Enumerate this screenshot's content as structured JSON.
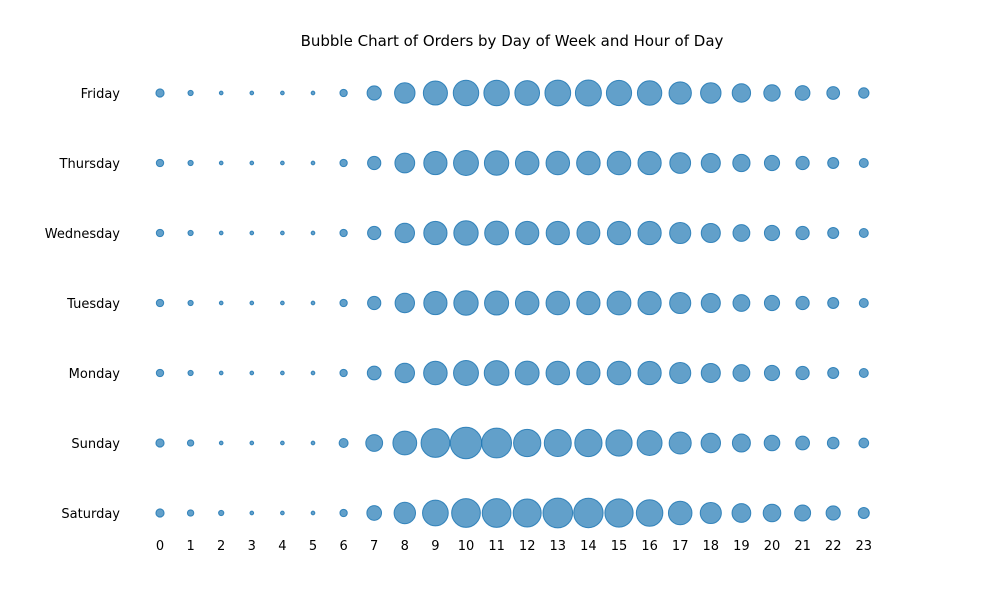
{
  "chart_data": {
    "type": "scatter",
    "title": "Bubble Chart of Orders by Day of Week and Hour of Day",
    "xlabel": "",
    "ylabel": "",
    "x": [
      0,
      1,
      2,
      3,
      4,
      5,
      6,
      7,
      8,
      9,
      10,
      11,
      12,
      13,
      14,
      15,
      16,
      17,
      18,
      19,
      20,
      21,
      22,
      23
    ],
    "days": [
      "Saturday",
      "Sunday",
      "Monday",
      "Tuesday",
      "Wednesday",
      "Thursday",
      "Friday"
    ],
    "grid": false,
    "legend": "none",
    "color": "#1f77b4",
    "values": {
      "Saturday": [
        5,
        3,
        2,
        1,
        1,
        1,
        4,
        16,
        34,
        49,
        61,
        61,
        58,
        65,
        64,
        59,
        52,
        41,
        33,
        26,
        23,
        19,
        15,
        9
      ],
      "Sunday": [
        5,
        3,
        1,
        1,
        1,
        1,
        6,
        21,
        42,
        61,
        73,
        66,
        55,
        54,
        55,
        51,
        46,
        36,
        28,
        24,
        18,
        14,
        10,
        7
      ],
      "Monday": [
        4,
        2,
        1,
        1,
        1,
        1,
        4,
        14,
        28,
        41,
        46,
        45,
        42,
        41,
        40,
        41,
        40,
        33,
        27,
        21,
        17,
        13,
        9,
        6
      ],
      "Tuesday": [
        4,
        2,
        1,
        1,
        1,
        1,
        4,
        13,
        28,
        40,
        44,
        43,
        41,
        41,
        40,
        42,
        40,
        33,
        27,
        21,
        17,
        13,
        9,
        6
      ],
      "Wednesday": [
        4,
        2,
        1,
        1,
        1,
        1,
        4,
        13,
        28,
        40,
        44,
        42,
        40,
        40,
        39,
        40,
        40,
        33,
        27,
        21,
        17,
        13,
        9,
        6
      ],
      "Thursday": [
        4,
        2,
        1,
        1,
        1,
        1,
        4,
        13,
        29,
        40,
        46,
        44,
        41,
        41,
        41,
        41,
        40,
        32,
        27,
        22,
        17,
        13,
        9,
        6
      ],
      "Friday": [
        5,
        2,
        1,
        1,
        1,
        1,
        4,
        15,
        31,
        43,
        48,
        48,
        45,
        49,
        50,
        47,
        44,
        37,
        31,
        25,
        20,
        16,
        12,
        8
      ]
    }
  }
}
